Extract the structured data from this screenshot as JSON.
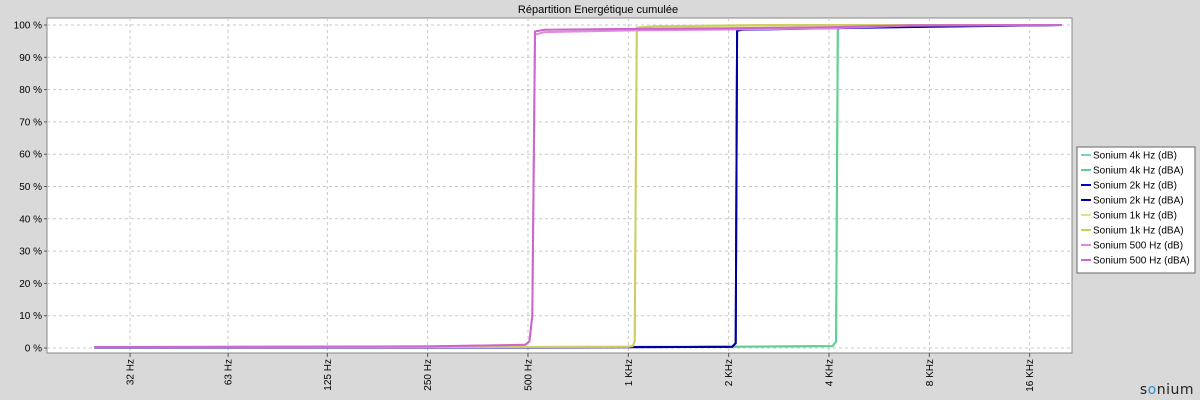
{
  "chart_data": {
    "type": "line",
    "title": "Répartition Energétique cumulée",
    "x_scale": "log2",
    "x_ticks": [
      {
        "value": 32,
        "label": "32 Hz"
      },
      {
        "value": 63,
        "label": "63 Hz"
      },
      {
        "value": 125,
        "label": "125 Hz"
      },
      {
        "value": 250,
        "label": "250 Hz"
      },
      {
        "value": 500,
        "label": "500 Hz"
      },
      {
        "value": 1000,
        "label": "1 KHz"
      },
      {
        "value": 2000,
        "label": "2 KHz"
      },
      {
        "value": 4000,
        "label": "4 KHz"
      },
      {
        "value": 8000,
        "label": "8 KHz"
      },
      {
        "value": 16000,
        "label": "16 KHz"
      }
    ],
    "xlim": [
      20,
      20000
    ],
    "ylim": [
      0,
      100
    ],
    "y_ticks": [
      "0 %",
      "10 %",
      "20 %",
      "30 %",
      "40 %",
      "50 %",
      "60 %",
      "70 %",
      "80 %",
      "90 %",
      "100 %"
    ],
    "grid": true,
    "legend_position": "right",
    "series": [
      {
        "name": "Sonium 4k Hz (dB)",
        "color": "#79d8a6",
        "x": [
          25,
          500,
          2000,
          4100,
          4200,
          4250,
          4300,
          20000
        ],
        "y": [
          0.3,
          0.3,
          0.4,
          0.6,
          2,
          98,
          99.5,
          100
        ]
      },
      {
        "name": "Sonium 4k Hz (dBA)",
        "color": "#5ccf92",
        "x": [
          25,
          500,
          2000,
          4100,
          4200,
          4250,
          4300,
          20000
        ],
        "y": [
          0.3,
          0.3,
          0.4,
          0.6,
          2,
          98.5,
          99.6,
          100
        ]
      },
      {
        "name": "Sonium 2k Hz (dB)",
        "color": "#0000c8",
        "x": [
          25,
          500,
          1500,
          2050,
          2100,
          2120,
          2200,
          4000,
          20000
        ],
        "y": [
          0.2,
          0.2,
          0.3,
          0.4,
          1.5,
          98.2,
          98.5,
          99,
          100
        ]
      },
      {
        "name": "Sonium 2k Hz (dBA)",
        "color": "#00009a",
        "x": [
          25,
          500,
          1500,
          2050,
          2100,
          2120,
          2200,
          4000,
          20000
        ],
        "y": [
          0.2,
          0.2,
          0.3,
          0.4,
          1.5,
          98.5,
          98.8,
          99.2,
          100
        ]
      },
      {
        "name": "Sonium 1k Hz (dB)",
        "color": "#e3e086",
        "x": [
          25,
          500,
          1000,
          1030,
          1045,
          1060,
          1200,
          2500,
          20000
        ],
        "y": [
          0.3,
          0.3,
          0.4,
          0.6,
          2,
          98.5,
          99.4,
          99.8,
          100
        ]
      },
      {
        "name": "Sonium 1k Hz (dBA)",
        "color": "#cfcc60",
        "x": [
          25,
          500,
          1000,
          1030,
          1045,
          1060,
          1200,
          2500,
          20000
        ],
        "y": [
          0.3,
          0.3,
          0.4,
          0.6,
          2,
          99.2,
          99.6,
          100,
          100
        ]
      },
      {
        "name": "Sonium 500 Hz (dB)",
        "color": "#e08ae0",
        "x": [
          25,
          250,
          490,
          505,
          515,
          525,
          560,
          1000,
          2000,
          4000,
          7000,
          20000
        ],
        "y": [
          0.3,
          0.5,
          1,
          2,
          10,
          97,
          97.8,
          98.3,
          98.6,
          99,
          99.8,
          100
        ]
      },
      {
        "name": "Sonium 500 Hz (dBA)",
        "color": "#cc66cc",
        "x": [
          25,
          250,
          490,
          505,
          515,
          525,
          560,
          1000,
          2000,
          4000,
          7000,
          20000
        ],
        "y": [
          0.3,
          0.5,
          1,
          2,
          10,
          98,
          98.5,
          98.8,
          99,
          99.3,
          99.9,
          100
        ]
      }
    ]
  },
  "brand": {
    "logo_text_pre": "s",
    "logo_text_o": "o",
    "logo_text_post": "nium"
  }
}
